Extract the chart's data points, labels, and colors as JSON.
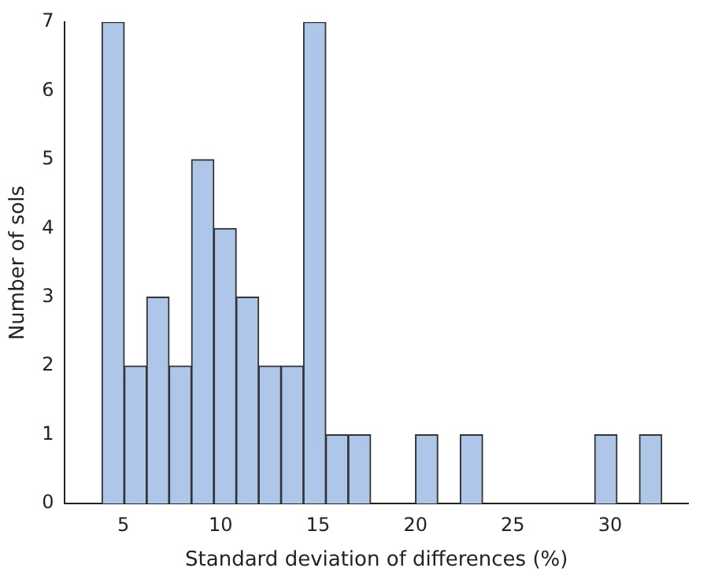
{
  "chart_data": {
    "type": "histogram",
    "xlabel": "Standard deviation of differences (%)",
    "ylabel": "Number of sols",
    "bins": [
      3.9,
      5.05,
      6.2,
      7.35,
      8.5,
      9.65,
      10.8,
      11.95,
      13.1,
      14.25,
      15.4,
      16.55,
      17.7,
      18.85,
      20.0,
      21.15,
      22.3,
      23.45,
      24.6,
      25.75,
      26.9,
      28.05,
      29.2,
      30.35,
      31.5,
      32.65
    ],
    "values": [
      7,
      2,
      3,
      2,
      5,
      4,
      3,
      2,
      2,
      7,
      1,
      1,
      0,
      0,
      1,
      0,
      1,
      0,
      0,
      0,
      0,
      0,
      1,
      0,
      1
    ],
    "color": "#aec7e8",
    "xlim": [
      2,
      34
    ],
    "xticks": [
      5,
      10,
      15,
      20,
      25,
      30
    ],
    "ylim": [
      0,
      7
    ],
    "yticks": [
      0,
      1,
      2,
      3,
      4,
      5,
      6,
      7
    ],
    "grid": false,
    "legend": false
  }
}
